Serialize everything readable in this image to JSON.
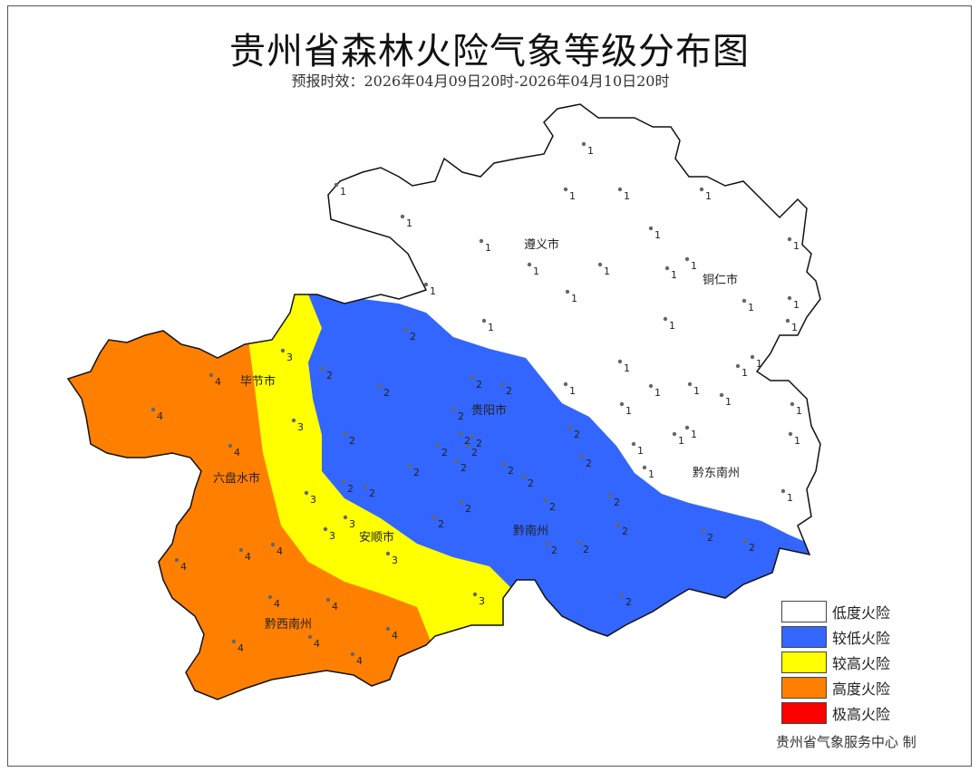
{
  "title": "贵州省森林火险气象等级分布图",
  "subtitle": "预报时效：2026年04月09日20时-2026年04月10日20时",
  "legend": [
    {
      "label": "低度火险",
      "color": "#FFFFFF",
      "level": 1
    },
    {
      "label": "较低火险",
      "color": "#3366FF",
      "level": 2
    },
    {
      "label": "较高火险",
      "color": "#FFFF00",
      "level": 3
    },
    {
      "label": "高度火险",
      "color": "#FF8000",
      "level": 4
    },
    {
      "label": "极高火险",
      "color": "#FF0000",
      "level": 5
    }
  ],
  "credit": "贵州省气象服务中心  制",
  "cities": [
    "遵义市",
    "铜仁市",
    "毕节市",
    "贵阳市",
    "六盘水市",
    "安顺市",
    "黔南州",
    "黔东南州",
    "黔西南州"
  ],
  "station_levels": {
    "level1_count_label": "1",
    "level2_label": "2",
    "level3_label": "3",
    "level4_label": "4"
  }
}
